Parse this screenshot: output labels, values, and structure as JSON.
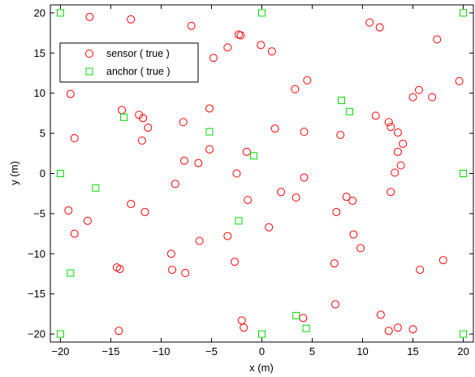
{
  "chart_data": {
    "type": "scatter",
    "title": "",
    "xlabel": "x (m)",
    "ylabel": "y (m)",
    "xlim": [
      -21,
      21
    ],
    "ylim": [
      -21,
      21
    ],
    "xticks": [
      -20,
      -15,
      -10,
      -5,
      0,
      5,
      10,
      15,
      20
    ],
    "yticks": [
      -20,
      -15,
      -10,
      -5,
      0,
      5,
      10,
      15,
      20
    ],
    "grid": false,
    "legend_position": "top-left",
    "series": [
      {
        "name": "sensor ( true )",
        "marker": "circle",
        "color": "#ff0000",
        "points": [
          [
            -17.1,
            19.5
          ],
          [
            -13.0,
            19.2
          ],
          [
            -7.0,
            18.4
          ],
          [
            -2.3,
            17.3
          ],
          [
            -2.1,
            17.2
          ],
          [
            -3.4,
            15.7
          ],
          [
            -4.8,
            14.4
          ],
          [
            -0.1,
            16.0
          ],
          [
            1.0,
            15.2
          ],
          [
            10.7,
            18.8
          ],
          [
            11.7,
            18.2
          ],
          [
            17.4,
            16.7
          ],
          [
            19.6,
            11.5
          ],
          [
            4.5,
            11.6
          ],
          [
            3.3,
            10.5
          ],
          [
            15.6,
            10.4
          ],
          [
            15.0,
            9.5
          ],
          [
            16.9,
            9.5
          ],
          [
            -19.0,
            9.9
          ],
          [
            -13.9,
            7.9
          ],
          [
            -12.2,
            7.3
          ],
          [
            -11.8,
            6.9
          ],
          [
            -11.3,
            5.7
          ],
          [
            -7.8,
            6.4
          ],
          [
            -5.2,
            8.1
          ],
          [
            11.3,
            7.2
          ],
          [
            12.6,
            6.4
          ],
          [
            12.8,
            5.8
          ],
          [
            13.5,
            5.1
          ],
          [
            1.3,
            5.6
          ],
          [
            4.2,
            5.2
          ],
          [
            7.8,
            4.8
          ],
          [
            -18.6,
            4.4
          ],
          [
            -11.9,
            4.1
          ],
          [
            -5.2,
            3.0
          ],
          [
            -7.7,
            1.6
          ],
          [
            -6.3,
            1.3
          ],
          [
            -1.5,
            2.7
          ],
          [
            14.0,
            3.7
          ],
          [
            13.5,
            2.7
          ],
          [
            13.8,
            1.0
          ],
          [
            13.2,
            0.1
          ],
          [
            -2.5,
            0.0
          ],
          [
            -8.6,
            -1.3
          ],
          [
            4.2,
            -0.5
          ],
          [
            1.9,
            -2.3
          ],
          [
            3.4,
            -3.0
          ],
          [
            8.4,
            -2.9
          ],
          [
            9.0,
            -3.4
          ],
          [
            12.8,
            -2.3
          ],
          [
            -1.4,
            -3.3
          ],
          [
            -13.0,
            -3.8
          ],
          [
            -11.6,
            -4.8
          ],
          [
            -19.2,
            -4.6
          ],
          [
            -17.3,
            -5.9
          ],
          [
            7.4,
            -4.8
          ],
          [
            0.7,
            -6.7
          ],
          [
            -18.6,
            -7.5
          ],
          [
            -6.2,
            -8.4
          ],
          [
            -3.4,
            -7.8
          ],
          [
            9.1,
            -7.6
          ],
          [
            9.8,
            -9.3
          ],
          [
            -9.0,
            -10.0
          ],
          [
            -2.7,
            -11.0
          ],
          [
            7.2,
            -11.2
          ],
          [
            -14.4,
            -11.7
          ],
          [
            -14.1,
            -11.9
          ],
          [
            -8.9,
            -12.0
          ],
          [
            -7.6,
            -12.4
          ],
          [
            15.7,
            -12.0
          ],
          [
            18.0,
            -10.8
          ],
          [
            7.3,
            -16.3
          ],
          [
            11.8,
            -17.6
          ],
          [
            -2.0,
            -18.3
          ],
          [
            4.1,
            -18.0
          ],
          [
            -1.8,
            -19.2
          ],
          [
            -14.2,
            -19.6
          ],
          [
            12.6,
            -19.6
          ],
          [
            13.5,
            -19.2
          ],
          [
            15.0,
            -19.4
          ]
        ]
      },
      {
        "name": "anchor ( true )",
        "marker": "square",
        "color": "#00dd00",
        "points": [
          [
            -20,
            20
          ],
          [
            0,
            20
          ],
          [
            20,
            20
          ],
          [
            -20,
            0
          ],
          [
            20,
            0
          ],
          [
            -20,
            -20
          ],
          [
            0,
            -20
          ],
          [
            20,
            -20
          ],
          [
            -13.7,
            7.0
          ],
          [
            -5.2,
            5.2
          ],
          [
            7.9,
            9.1
          ],
          [
            8.7,
            7.7
          ],
          [
            -0.8,
            2.2
          ],
          [
            -16.5,
            -1.8
          ],
          [
            -2.3,
            -5.9
          ],
          [
            -19.0,
            -12.4
          ],
          [
            3.4,
            -17.7
          ],
          [
            4.4,
            -19.3
          ]
        ]
      }
    ]
  }
}
